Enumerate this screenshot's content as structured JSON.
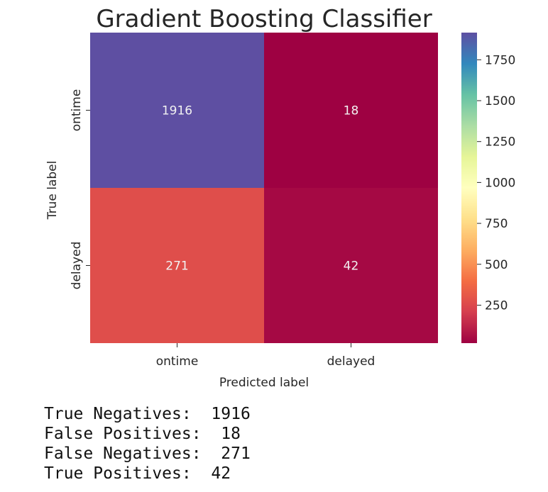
{
  "chart_data": {
    "type": "heatmap",
    "title": "Gradient Boosting Classifier",
    "xlabel": "Predicted label",
    "ylabel": "True label",
    "x_categories": [
      "ontime",
      "delayed"
    ],
    "y_categories": [
      "ontime",
      "delayed"
    ],
    "values": [
      [
        1916,
        18
      ],
      [
        271,
        42
      ]
    ],
    "colormap": "Spectral",
    "colorbar": {
      "range": [
        18,
        1916
      ],
      "ticks": [
        250,
        500,
        750,
        1000,
        1250,
        1500,
        1750
      ]
    },
    "grid": false
  },
  "summary": [
    {
      "label": "True Negatives: ",
      "value": "1916"
    },
    {
      "label": "False Positives: ",
      "value": "18"
    },
    {
      "label": "False Negatives: ",
      "value": "271"
    },
    {
      "label": "True Positives: ",
      "value": "42"
    }
  ]
}
